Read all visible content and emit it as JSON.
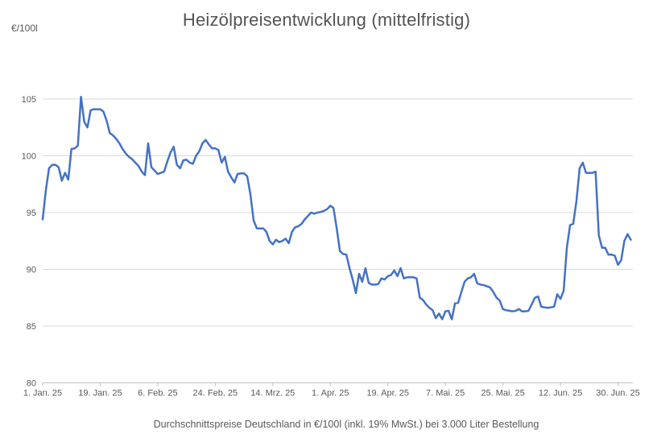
{
  "chart": {
    "title": "Heizölpreisentwicklung (mittelfristig)",
    "unit_label": "€/100l",
    "footer": "Durchschnittspreise Deutschland in €/100l (inkl. 19% MwSt.) bei 3.000 Liter Bestellung"
  },
  "chart_data": {
    "type": "line",
    "title": "Heizölpreisentwicklung (mittelfristig)",
    "ylabel": "€/100l",
    "subtitle": "Durchschnittspreise Deutschland in €/100l (inkl. 19% MwSt.) bei 3.000 Liter Bestellung",
    "x_tick_labels": [
      "1. Jan. 25",
      "19. Jan. 25",
      "6. Feb. 25",
      "24. Feb. 25",
      "14. Mrz. 25",
      "1. Apr. 25",
      "19. Apr. 25",
      "7. Mai. 25",
      "25. Mai. 25",
      "12. Jun. 25",
      "30. Jun. 25"
    ],
    "x_tick_interval_days": 18,
    "x_unit": "days since 1. Jan. 25 (daily values)",
    "y_ticks": [
      80,
      85,
      90,
      95,
      100,
      105
    ],
    "ylim": [
      80,
      105
    ],
    "grid": "horizontal",
    "legend": "none",
    "line_color": "#4472C4",
    "grid_color": "#D9D9D9",
    "axis_color": "#BFBFBF",
    "text_color": "#595959",
    "values": [
      94.4,
      97.0,
      98.9,
      99.2,
      99.2,
      99.0,
      97.8,
      98.5,
      97.9,
      100.6,
      100.65,
      100.9,
      105.2,
      103.0,
      102.5,
      104.0,
      104.1,
      104.1,
      104.1,
      103.9,
      103.1,
      102.0,
      101.8,
      101.5,
      101.1,
      100.6,
      100.2,
      99.9,
      99.7,
      99.4,
      99.1,
      98.6,
      98.3,
      101.1,
      99.0,
      98.7,
      98.4,
      98.5,
      98.6,
      99.5,
      100.3,
      100.8,
      99.2,
      98.9,
      99.6,
      99.65,
      99.4,
      99.3,
      100.0,
      100.4,
      101.1,
      101.4,
      101.0,
      100.65,
      100.65,
      100.5,
      99.4,
      99.9,
      98.6,
      98.1,
      97.65,
      98.4,
      98.45,
      98.45,
      98.2,
      96.6,
      94.3,
      93.6,
      93.6,
      93.6,
      93.3,
      92.5,
      92.2,
      92.6,
      92.4,
      92.5,
      92.7,
      92.3,
      93.3,
      93.7,
      93.8,
      94.0,
      94.4,
      94.7,
      95.0,
      94.9,
      95.0,
      95.05,
      95.15,
      95.3,
      95.6,
      95.4,
      93.6,
      91.6,
      91.35,
      91.3,
      90.1,
      89.1,
      87.9,
      89.6,
      88.9,
      90.1,
      88.8,
      88.65,
      88.65,
      88.7,
      89.2,
      89.1,
      89.4,
      89.5,
      89.9,
      89.4,
      90.1,
      89.2,
      89.3,
      89.3,
      89.3,
      89.2,
      87.5,
      87.3,
      86.9,
      86.6,
      86.4,
      85.7,
      86.1,
      85.6,
      86.3,
      86.35,
      85.6,
      87.0,
      87.05,
      88.0,
      88.9,
      89.2,
      89.3,
      89.6,
      88.75,
      88.65,
      88.6,
      88.5,
      88.4,
      88.0,
      87.5,
      87.25,
      86.5,
      86.4,
      86.35,
      86.3,
      86.35,
      86.5,
      86.3,
      86.3,
      86.35,
      86.9,
      87.5,
      87.6,
      86.7,
      86.65,
      86.6,
      86.65,
      86.7,
      87.8,
      87.4,
      88.1,
      91.9,
      93.9,
      94.0,
      96.0,
      98.9,
      99.4,
      98.5,
      98.5,
      98.5,
      98.6,
      93.0,
      91.9,
      91.9,
      91.3,
      91.3,
      91.2,
      90.4,
      90.8,
      92.5,
      93.1,
      92.6
    ]
  }
}
